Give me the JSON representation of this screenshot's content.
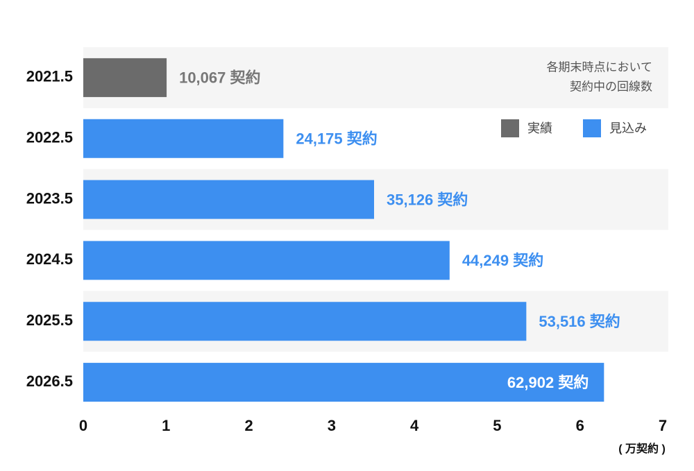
{
  "chart_data": {
    "type": "bar",
    "orientation": "horizontal",
    "categories": [
      "2021.5",
      "2022.5",
      "2023.5",
      "2024.5",
      "2025.5",
      "2026.5"
    ],
    "series": [
      {
        "name": "実績",
        "color": "#6b6b6b",
        "label_color": "#777777",
        "values": [
          1.0067,
          null,
          null,
          null,
          null,
          null
        ],
        "value_labels": [
          "10,067 契約",
          null,
          null,
          null,
          null,
          null
        ]
      },
      {
        "name": "見込み",
        "color": "#3d8ff0",
        "label_color": "#3d8ff0",
        "values": [
          null,
          2.4175,
          3.5126,
          4.4249,
          5.3516,
          6.2902
        ],
        "value_labels": [
          null,
          "24,175 契約",
          "35,126 契約",
          "44,249 契約",
          "53,516 契約",
          "62,902 契約"
        ]
      }
    ],
    "xlim": [
      0,
      7
    ],
    "xticks": [
      0,
      1,
      2,
      3,
      4,
      5,
      6,
      7
    ],
    "xlabel": "( 万契約 )",
    "annotation": [
      "各期末時点において",
      "契約中の回線数"
    ],
    "legend_position": "upper right"
  }
}
